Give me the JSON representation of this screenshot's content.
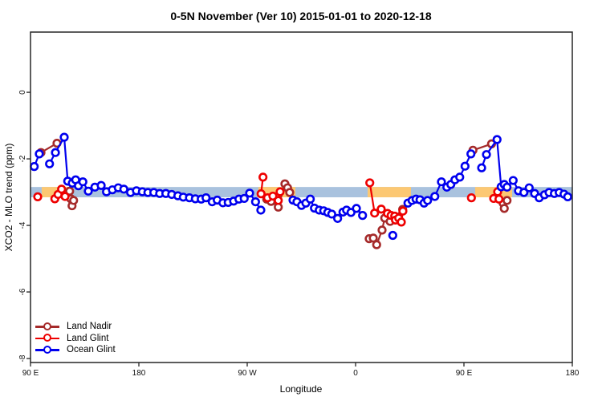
{
  "page": {
    "title": "0-5N November (Ver 10)   2015-01-01 to 2020-12-18"
  },
  "chart_data": {
    "type": "line",
    "title": "0-5N November (Ver 10)   2015-01-01 to 2020-12-18",
    "xlabel": "Longitude",
    "ylabel": "XCO2 - MLO trend (ppm)",
    "x_axis": {
      "note": "wrapped longitude axis, degrees measured from 90E at left edge",
      "range": [
        0,
        450
      ],
      "ticks": [
        {
          "pos": 0,
          "label": "90 E"
        },
        {
          "pos": 90,
          "label": "180"
        },
        {
          "pos": 180,
          "label": "90 W"
        },
        {
          "pos": 270,
          "label": "0"
        },
        {
          "pos": 360,
          "label": "90 E"
        },
        {
          "pos": 450,
          "label": "180"
        }
      ]
    },
    "y_axis": {
      "range": [
        -8.12,
        1.81
      ],
      "ticks": [
        {
          "val": 0,
          "label": "0"
        },
        {
          "val": -2,
          "label": "-2"
        },
        {
          "val": -4,
          "label": "-4"
        },
        {
          "val": -6,
          "label": "-6"
        },
        {
          "val": -8,
          "label": "-8"
        }
      ]
    },
    "surface_strip": {
      "value_center": -3,
      "value_halfwidth": 0.155,
      "ocean_color": "#a9c2de",
      "land_color": "#fcc873",
      "land_segments_deg": [
        [
          9.3,
          31.3
        ],
        [
          189.3,
          220
        ],
        [
          280,
          316
        ],
        [
          369.3,
          400
        ]
      ]
    },
    "series": [
      {
        "name": "Land Nadir",
        "color": "#A52A2A",
        "segments": [
          [
            [
              8.7,
              -1.81
            ],
            [
              22,
              -1.53
            ]
          ],
          [
            [
              32.5,
              -2.97
            ],
            [
              33.5,
              -3.2
            ],
            [
              34.5,
              -3.41
            ],
            [
              35.8,
              -3.25
            ]
          ],
          [
            [
              196.2,
              -3.21
            ],
            [
              199.8,
              -3.28
            ],
            [
              205.8,
              -3.45
            ],
            [
              211.3,
              -2.75
            ],
            [
              213.5,
              -2.87
            ],
            [
              215.3,
              -3.01
            ]
          ],
          [
            [
              281.3,
              -4.4
            ],
            [
              284.7,
              -4.38
            ],
            [
              287.5,
              -4.58
            ],
            [
              292,
              -4.14
            ],
            [
              294.2,
              -3.78
            ],
            [
              298.7,
              -3.88
            ],
            [
              309.1,
              -3.52
            ]
          ],
          [
            [
              367.5,
              -1.74
            ],
            [
              382.9,
              -1.55
            ]
          ],
          [
            [
              392.5,
              -3.33
            ],
            [
              393.5,
              -3.49
            ],
            [
              395.8,
              -3.25
            ]
          ]
        ]
      },
      {
        "name": "Land Glint",
        "color": "#EE0000",
        "segments": [
          [
            [
              6,
              -3.14
            ]
          ],
          [
            [
              20.2,
              -3.2
            ],
            [
              22.9,
              -3.07
            ],
            [
              25.8,
              -2.91
            ],
            [
              28.7,
              -3.13
            ]
          ],
          [
            [
              193.1,
              -2.55
            ],
            [
              191.5,
              -3.05
            ],
            [
              196.9,
              -3.17
            ],
            [
              201.3,
              -3.12
            ],
            [
              205.8,
              -3.25
            ],
            [
              207.3,
              -2.99
            ]
          ],
          [
            [
              281.8,
              -2.72
            ],
            [
              285.8,
              -3.63
            ],
            [
              291.3,
              -3.51
            ],
            [
              296.5,
              -3.64
            ],
            [
              299.5,
              -3.7
            ],
            [
              302.5,
              -3.72
            ],
            [
              303.1,
              -3.84
            ],
            [
              305.8,
              -3.78
            ],
            [
              308,
              -3.9
            ],
            [
              309.3,
              -3.57
            ]
          ],
          [
            [
              366.2,
              -3.17
            ]
          ],
          [
            [
              384.7,
              -3.19
            ],
            [
              388,
              -2.99
            ],
            [
              389.1,
              -3.21
            ]
          ]
        ]
      },
      {
        "name": "Ocean Glint",
        "color": "#0000EE",
        "segments": [
          [
            [
              3.1,
              -2.23
            ],
            [
              7.3,
              -1.85
            ]
          ],
          [
            [
              15.8,
              -2.15
            ],
            [
              20.7,
              -1.81
            ],
            [
              28,
              -1.35
            ],
            [
              30.9,
              -2.67
            ],
            [
              34.7,
              -2.73
            ],
            [
              37.5,
              -2.63
            ],
            [
              39.8,
              -2.81
            ],
            [
              43.5,
              -2.69
            ],
            [
              48,
              -2.97
            ],
            [
              53.5,
              -2.85
            ],
            [
              58.7,
              -2.8
            ],
            [
              63.1,
              -2.99
            ],
            [
              68,
              -2.93
            ],
            [
              72.9,
              -2.87
            ],
            [
              77.5,
              -2.91
            ],
            [
              83.1,
              -3.01
            ],
            [
              88,
              -2.96
            ],
            [
              92.9,
              -2.99
            ],
            [
              97.5,
              -3.01
            ],
            [
              102.4,
              -3.01
            ],
            [
              107.3,
              -3.04
            ],
            [
              112.4,
              -3.04
            ],
            [
              117.3,
              -3.07
            ],
            [
              122.4,
              -3.11
            ],
            [
              126.9,
              -3.15
            ],
            [
              132,
              -3.17
            ],
            [
              136.9,
              -3.2
            ],
            [
              141.8,
              -3.21
            ],
            [
              145.8,
              -3.17
            ],
            [
              150.9,
              -3.29
            ],
            [
              155.1,
              -3.24
            ],
            [
              159.8,
              -3.32
            ],
            [
              164.2,
              -3.31
            ],
            [
              168.7,
              -3.27
            ],
            [
              173.1,
              -3.21
            ],
            [
              177.5,
              -3.19
            ],
            [
              182,
              -3.03
            ],
            [
              186.9,
              -3.29
            ],
            [
              191.3,
              -3.54
            ]
          ],
          [
            [
              218,
              -3.24
            ],
            [
              221.3,
              -3.29
            ],
            [
              225.1,
              -3.4
            ],
            [
              228.7,
              -3.33
            ],
            [
              232.4,
              -3.21
            ],
            [
              235.8,
              -3.48
            ],
            [
              239.8,
              -3.54
            ],
            [
              243.5,
              -3.56
            ],
            [
              246.9,
              -3.61
            ],
            [
              250.2,
              -3.66
            ],
            [
              255.1,
              -3.79
            ],
            [
              259.5,
              -3.6
            ],
            [
              262.5,
              -3.54
            ],
            [
              266.2,
              -3.61
            ],
            [
              270.7,
              -3.49
            ],
            [
              275.8,
              -3.7
            ]
          ],
          [
            [
              300.9,
              -4.3
            ]
          ],
          [
            [
              313.5,
              -3.33
            ],
            [
              316.9,
              -3.25
            ],
            [
              320.2,
              -3.21
            ],
            [
              323.5,
              -3.23
            ],
            [
              326.9,
              -3.33
            ],
            [
              329.8,
              -3.25
            ],
            [
              335.8,
              -3.13
            ],
            [
              341.3,
              -2.69
            ],
            [
              345.8,
              -2.85
            ],
            [
              349.1,
              -2.77
            ],
            [
              352.5,
              -2.63
            ],
            [
              356.5,
              -2.55
            ],
            [
              360.9,
              -2.22
            ],
            [
              365.8,
              -1.85
            ]
          ],
          [
            [
              374.7,
              -2.27
            ],
            [
              378.7,
              -1.87
            ],
            [
              387.5,
              -1.42
            ],
            [
              390.9,
              -2.84
            ],
            [
              393.5,
              -2.77
            ],
            [
              395.8,
              -2.85
            ],
            [
              400.9,
              -2.65
            ],
            [
              405.3,
              -2.96
            ],
            [
              409.8,
              -3.01
            ],
            [
              414.2,
              -2.87
            ],
            [
              418.7,
              -3.04
            ],
            [
              422.5,
              -3.17
            ],
            [
              426.9,
              -3.08
            ],
            [
              430.7,
              -3.01
            ],
            [
              435.1,
              -3.04
            ],
            [
              439.1,
              -3.01
            ],
            [
              443.1,
              -3.06
            ],
            [
              446.2,
              -3.14
            ]
          ]
        ]
      }
    ],
    "legend": {
      "position": "bottom-left",
      "items": [
        "Land Nadir",
        "Land Glint",
        "Ocean Glint"
      ]
    }
  }
}
